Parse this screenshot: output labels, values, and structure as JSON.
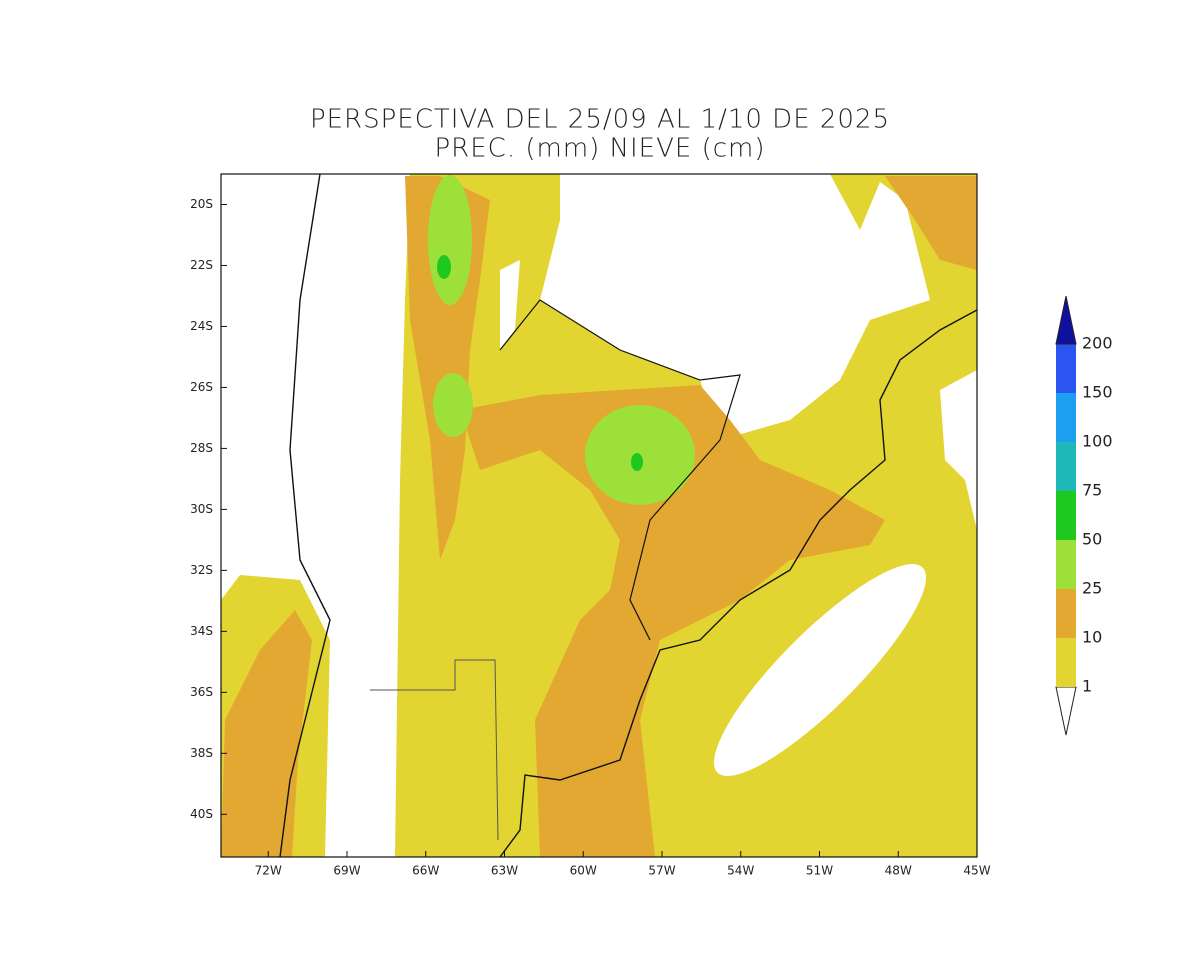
{
  "title": "PERSPECTIVA DEL 25/09 AL 1/10 DE 2025",
  "subtitle": "PREC. (mm) NIEVE (cm)",
  "map": {
    "xlim": [
      -73.8,
      -45
    ],
    "ylim": [
      -41.4,
      -19
    ],
    "xticks": [
      {
        "value": -72,
        "label": "72W"
      },
      {
        "value": -69,
        "label": "69W"
      },
      {
        "value": -66,
        "label": "66W"
      },
      {
        "value": -63,
        "label": "63W"
      },
      {
        "value": -60,
        "label": "60W"
      },
      {
        "value": -57,
        "label": "57W"
      },
      {
        "value": -54,
        "label": "54W"
      },
      {
        "value": -51,
        "label": "51W"
      },
      {
        "value": -48,
        "label": "48W"
      },
      {
        "value": -45,
        "label": "45W"
      }
    ],
    "yticks": [
      {
        "value": -20,
        "label": "20S"
      },
      {
        "value": -22,
        "label": "22S"
      },
      {
        "value": -24,
        "label": "24S"
      },
      {
        "value": -26,
        "label": "26S"
      },
      {
        "value": -28,
        "label": "28S"
      },
      {
        "value": -30,
        "label": "30S"
      },
      {
        "value": -32,
        "label": "32S"
      },
      {
        "value": -34,
        "label": "34S"
      },
      {
        "value": -36,
        "label": "36S"
      },
      {
        "value": -38,
        "label": "38S"
      },
      {
        "value": -40,
        "label": "40S"
      }
    ]
  },
  "colorbar": {
    "levels": [
      1,
      10,
      25,
      50,
      75,
      100,
      150,
      200
    ],
    "colors": [
      "#ffffff",
      "#e3d531",
      "#e2a832",
      "#9ee03a",
      "#1fc81f",
      "#1fb8b8",
      "#1e9ef0",
      "#2a55f0",
      "#1010a0"
    ]
  }
}
